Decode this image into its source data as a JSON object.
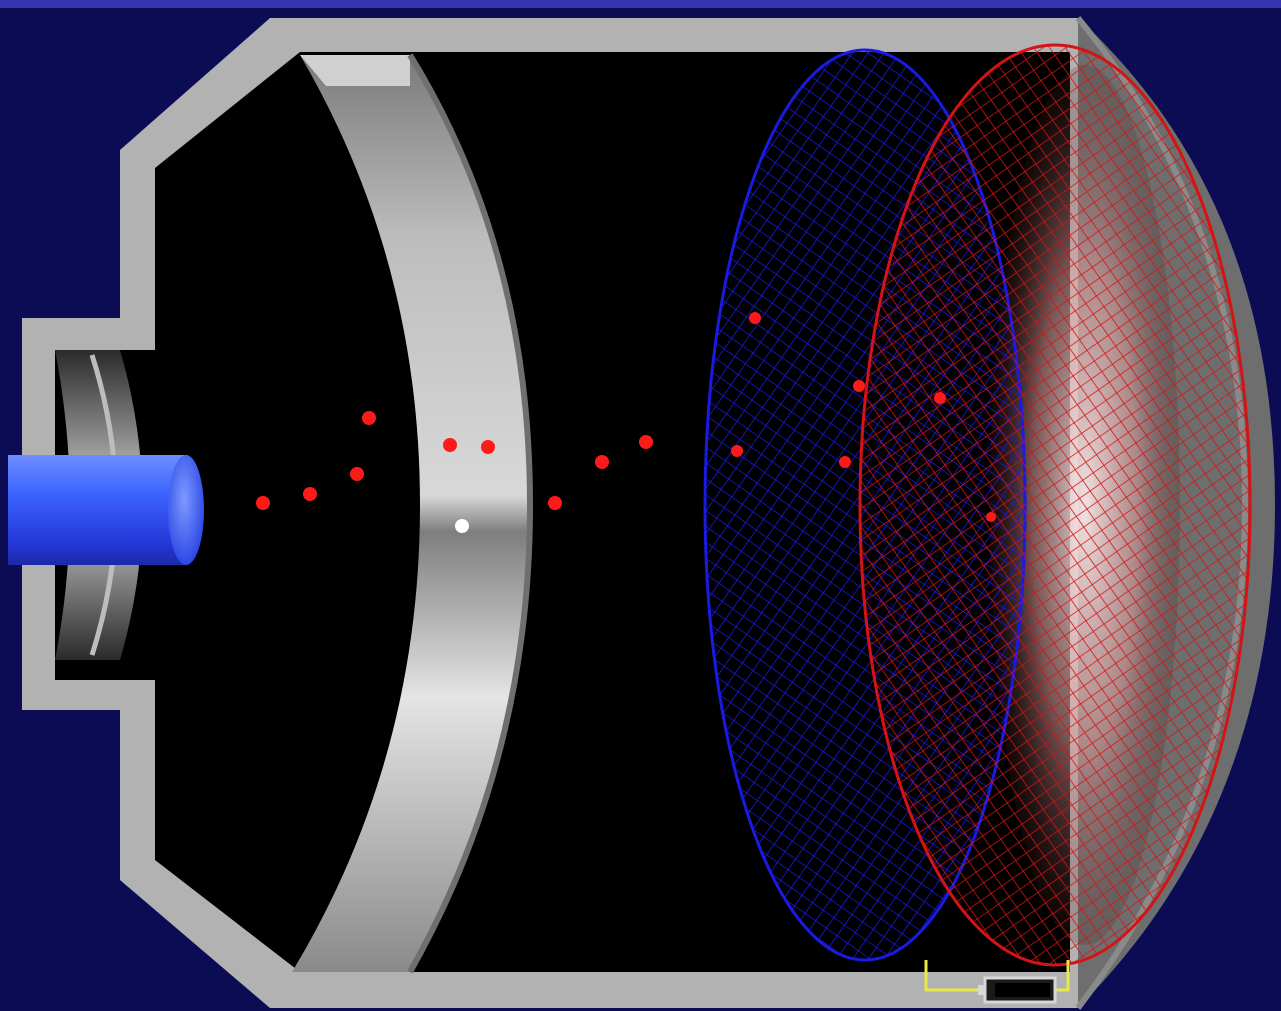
{
  "diagram": {
    "colors": {
      "background": "#0c0c55",
      "top_edge": "#3535b4",
      "chamber": "#000000",
      "housing": "#b2b2b2",
      "housing_shadow": "#6e6e6e",
      "grid_blue": "#1a1ae0",
      "grid_red": "#d41414",
      "beam": "#3c64ff",
      "particle": "#ff1a1a",
      "particle_highlight": "#ffffff",
      "circuit_wire": "#e8e84a"
    },
    "icons": {
      "source": "ion-source-icon",
      "battery": "battery-icon"
    }
  }
}
